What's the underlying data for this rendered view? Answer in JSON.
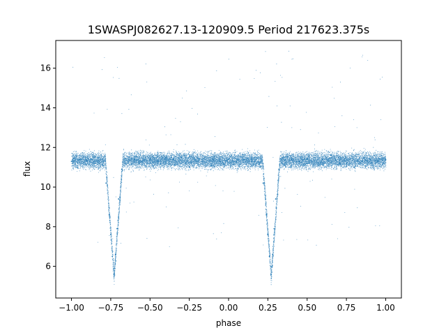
{
  "chart_data": {
    "type": "scatter",
    "title": "1SWASPJ082627.13-120909.5 Period 217623.375s",
    "xlabel": "phase",
    "ylabel": "flux",
    "xlim": [
      -1.1,
      1.1
    ],
    "ylim": [
      4.4,
      17.4
    ],
    "x_ticks": [
      -1.0,
      -0.75,
      -0.5,
      -0.25,
      0.0,
      0.25,
      0.5,
      0.75,
      1.0
    ],
    "x_tick_labels": [
      "−1.00",
      "−0.75",
      "−0.50",
      "−0.25",
      "0.00",
      "0.25",
      "0.50",
      "0.75",
      "1.00"
    ],
    "y_ticks": [
      6,
      8,
      10,
      12,
      14,
      16
    ],
    "y_tick_labels": [
      "6",
      "8",
      "10",
      "12",
      "14",
      "16"
    ],
    "grid": false,
    "series": [
      {
        "color": "#1f77b4",
        "baseline_flux": 11.35,
        "eclipses": [
          {
            "phase_center": -0.73,
            "min_flux": 5.5
          },
          {
            "phase_center": 0.27,
            "min_flux": 5.5
          }
        ],
        "x": [
          -1.0,
          -0.95,
          -0.9,
          -0.85,
          -0.8,
          -0.78,
          -0.76,
          -0.75,
          -0.74,
          -0.73,
          -0.72,
          -0.71,
          -0.7,
          -0.68,
          -0.66,
          -0.6,
          -0.55,
          -0.5,
          -0.45,
          -0.4,
          -0.35,
          -0.3,
          -0.25,
          -0.2,
          -0.15,
          -0.1,
          -0.05,
          0.0,
          0.05,
          0.1,
          0.15,
          0.2,
          0.22,
          0.24,
          0.25,
          0.26,
          0.27,
          0.28,
          0.29,
          0.3,
          0.32,
          0.34,
          0.4,
          0.45,
          0.5,
          0.55,
          0.6,
          0.65,
          0.7,
          0.75,
          0.8,
          0.85,
          0.9,
          0.95,
          1.0
        ],
        "y": [
          11.3,
          11.4,
          11.3,
          11.2,
          11.1,
          10.2,
          8.6,
          7.6,
          6.5,
          5.6,
          6.6,
          7.9,
          9.4,
          10.9,
          11.2,
          11.4,
          11.3,
          11.4,
          11.3,
          11.5,
          11.4,
          11.5,
          11.0,
          11.3,
          11.5,
          11.4,
          11.3,
          11.4,
          11.3,
          11.4,
          11.3,
          11.0,
          10.2,
          8.6,
          7.6,
          6.5,
          5.6,
          6.6,
          7.9,
          9.4,
          10.9,
          11.2,
          11.4,
          11.3,
          11.4,
          11.5,
          11.4,
          11.6,
          11.5,
          11.2,
          11.0,
          11.3,
          11.4,
          11.3,
          11.4
        ]
      }
    ]
  }
}
